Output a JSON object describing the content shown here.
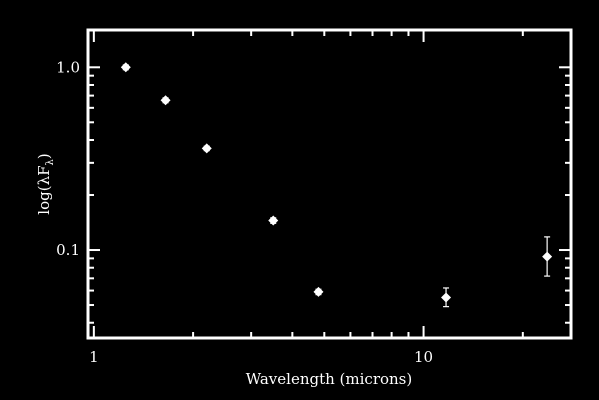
{
  "colors": {
    "background": "#000000",
    "foreground": "#ffffff"
  },
  "chart_data": {
    "type": "scatter",
    "title": "",
    "xlabel": "Wavelength (microns)",
    "ylabel": "log(λF",
    "ylabel_subscript": "λ",
    "ylabel_suffix": ")",
    "x_scale": "log",
    "y_scale": "log",
    "xlim": [
      0.96,
      28.0
    ],
    "ylim": [
      0.033,
      1.6
    ],
    "grid": false,
    "legend": "none",
    "x_ticks": [
      {
        "value": 1,
        "label": "1"
      },
      {
        "value": 10,
        "label": "10"
      }
    ],
    "y_ticks": [
      {
        "value": 0.1,
        "label": "0.1"
      },
      {
        "value": 1.0,
        "label": "1.0"
      }
    ],
    "marker": "diamond",
    "points": [
      {
        "x": 1.25,
        "y": 1.0,
        "yerr_low": 0.03,
        "yerr_high": 0.03
      },
      {
        "x": 1.65,
        "y": 0.66,
        "yerr_low": 0.02,
        "yerr_high": 0.02
      },
      {
        "x": 2.2,
        "y": 0.36,
        "yerr_low": 0.01,
        "yerr_high": 0.01
      },
      {
        "x": 3.5,
        "y": 0.145,
        "yerr_low": 0.005,
        "yerr_high": 0.005
      },
      {
        "x": 4.8,
        "y": 0.059,
        "yerr_low": 0.002,
        "yerr_high": 0.002
      },
      {
        "x": 11.7,
        "y": 0.055,
        "yerr_low": 0.006,
        "yerr_high": 0.007
      },
      {
        "x": 23.7,
        "y": 0.092,
        "yerr_low": 0.02,
        "yerr_high": 0.026
      }
    ]
  }
}
